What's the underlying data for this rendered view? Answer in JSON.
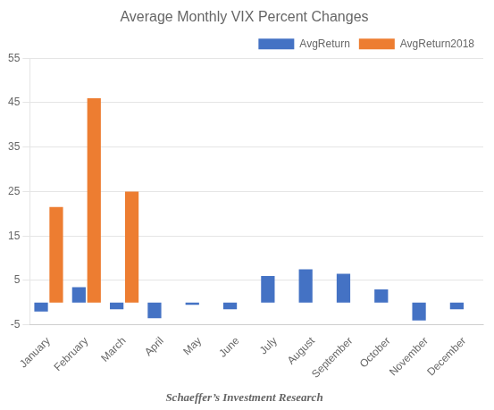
{
  "chart_data": {
    "type": "bar",
    "title": "Average Monthly VIX Percent Changes",
    "annotations": [
      "Schaeffer’s Investment Research"
    ],
    "categories": [
      "January",
      "February",
      "March",
      "April",
      "May",
      "June",
      "July",
      "August",
      "September",
      "October",
      "November",
      "December"
    ],
    "series": [
      {
        "name": "AvgReturn",
        "color": "#4472C4",
        "values": [
          -2.0,
          3.5,
          -1.5,
          -3.5,
          -0.5,
          -1.5,
          6.0,
          7.5,
          6.5,
          3.0,
          -4.0,
          -1.5
        ]
      },
      {
        "name": "AvgReturn2018",
        "color": "#ED7D31",
        "values": [
          21.5,
          46.0,
          25.0,
          null,
          null,
          null,
          null,
          null,
          null,
          null,
          null,
          null
        ]
      }
    ],
    "ylim": [
      -5,
      55
    ],
    "yticks": [
      -5,
      5,
      15,
      25,
      35,
      45,
      55
    ],
    "grid": true,
    "legend": "upper right"
  }
}
